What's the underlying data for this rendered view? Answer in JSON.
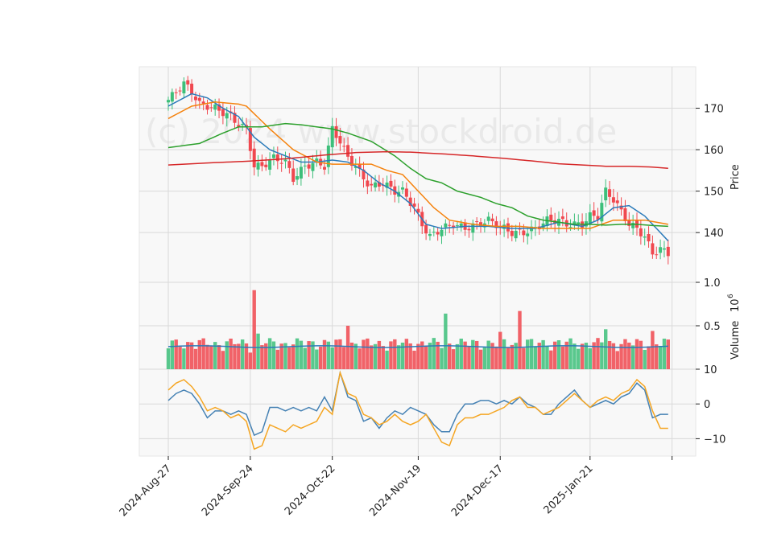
{
  "watermark": "(c) 2024 www.stockdroid.de",
  "colors": {
    "panel_bg": "#f8f8f8",
    "grid": "#d9d9d9",
    "up": "#3dbf7a",
    "down": "#f0484f",
    "ma_blue": "#2b7bba",
    "ma_orange": "#f5820d",
    "ma_green": "#2ca02c",
    "ma_red": "#d62728",
    "osc_blue": "#4682b4",
    "osc_orange": "#f5a623"
  },
  "chart_data": {
    "type": "candlestick",
    "x_labels": [
      "2024-Aug-27",
      "2024-Sep-24",
      "2024-Oct-22",
      "2024-Nov-19",
      "2024-Dec-17",
      "2025-Jan-21"
    ],
    "price_axis": {
      "label": "Price",
      "ticks": [
        140,
        150,
        160,
        170
      ],
      "ylim": [
        128,
        180
      ]
    },
    "volume_axis": {
      "label": "Volume",
      "exponent_label": "10",
      "exponent": "6",
      "ticks": [
        "0.5",
        "1.0"
      ],
      "ylim": [
        0,
        1.0
      ]
    },
    "osc_axis": {
      "ticks": [
        "−10",
        "0",
        "10"
      ],
      "tick_values": [
        -10,
        0,
        10
      ],
      "ylim": [
        -15,
        10
      ]
    },
    "price_close_anchors": [
      [
        0,
        172
      ],
      [
        4,
        176
      ],
      [
        6,
        174
      ],
      [
        8,
        171
      ],
      [
        12,
        170
      ],
      [
        16,
        168
      ],
      [
        18,
        166
      ],
      [
        20,
        165
      ],
      [
        22,
        156
      ],
      [
        24,
        156
      ],
      [
        27,
        158
      ],
      [
        30,
        157
      ],
      [
        32,
        153
      ],
      [
        35,
        156
      ],
      [
        38,
        157
      ],
      [
        40,
        156
      ],
      [
        42,
        165
      ],
      [
        44,
        162
      ],
      [
        46,
        158
      ],
      [
        48,
        156
      ],
      [
        50,
        153
      ],
      [
        52,
        151
      ],
      [
        55,
        152
      ],
      [
        58,
        150
      ],
      [
        60,
        150
      ],
      [
        63,
        146
      ],
      [
        65,
        142
      ],
      [
        67,
        139
      ],
      [
        70,
        141
      ],
      [
        73,
        142
      ],
      [
        76,
        141
      ],
      [
        79,
        142
      ],
      [
        82,
        143
      ],
      [
        84,
        142
      ],
      [
        86,
        141
      ],
      [
        88,
        140
      ],
      [
        91,
        140
      ],
      [
        94,
        141
      ],
      [
        97,
        143
      ],
      [
        100,
        143
      ],
      [
        102,
        142
      ],
      [
        104,
        142
      ],
      [
        106,
        142
      ],
      [
        108,
        144
      ],
      [
        110,
        144
      ],
      [
        112,
        150
      ],
      [
        114,
        148
      ],
      [
        116,
        145
      ],
      [
        118,
        142
      ],
      [
        120,
        141
      ],
      [
        122,
        139
      ],
      [
        124,
        135
      ],
      [
        126,
        136
      ],
      [
        128,
        135
      ]
    ],
    "ma_series": [
      {
        "color_key": "ma_blue",
        "points": [
          [
            0,
            170.5
          ],
          [
            6,
            173.5
          ],
          [
            10,
            172.5
          ],
          [
            14,
            170
          ],
          [
            18,
            168
          ],
          [
            22,
            163
          ],
          [
            26,
            160
          ],
          [
            30,
            158.5
          ],
          [
            34,
            157
          ],
          [
            38,
            157
          ],
          [
            42,
            157.5
          ],
          [
            46,
            157
          ],
          [
            50,
            155
          ],
          [
            54,
            152
          ],
          [
            58,
            150
          ],
          [
            62,
            147
          ],
          [
            66,
            142
          ],
          [
            70,
            141
          ],
          [
            76,
            141.5
          ],
          [
            82,
            141.5
          ],
          [
            88,
            141
          ],
          [
            94,
            141
          ],
          [
            100,
            142.5
          ],
          [
            106,
            141.5
          ],
          [
            110,
            143
          ],
          [
            114,
            146
          ],
          [
            118,
            146.5
          ],
          [
            122,
            144
          ],
          [
            126,
            140
          ],
          [
            128,
            138
          ]
        ]
      },
      {
        "color_key": "ma_orange",
        "points": [
          [
            0,
            167.5
          ],
          [
            6,
            170.5
          ],
          [
            12,
            171.5
          ],
          [
            18,
            171
          ],
          [
            20,
            170.5
          ],
          [
            26,
            165
          ],
          [
            32,
            160
          ],
          [
            38,
            157
          ],
          [
            42,
            156.5
          ],
          [
            46,
            156.5
          ],
          [
            52,
            156.5
          ],
          [
            56,
            155
          ],
          [
            60,
            154
          ],
          [
            64,
            150
          ],
          [
            68,
            146
          ],
          [
            72,
            143
          ],
          [
            78,
            142
          ],
          [
            84,
            141.5
          ],
          [
            90,
            141.5
          ],
          [
            96,
            141
          ],
          [
            102,
            141
          ],
          [
            108,
            141
          ],
          [
            114,
            143
          ],
          [
            118,
            143
          ],
          [
            122,
            143
          ],
          [
            128,
            142
          ]
        ]
      },
      {
        "color_key": "ma_green",
        "points": [
          [
            0,
            160.5
          ],
          [
            8,
            161.5
          ],
          [
            14,
            164
          ],
          [
            18,
            165.5
          ],
          [
            24,
            165.5
          ],
          [
            30,
            166.3
          ],
          [
            34,
            166
          ],
          [
            38,
            165.5
          ],
          [
            42,
            165
          ],
          [
            46,
            164
          ],
          [
            52,
            162
          ],
          [
            58,
            158.5
          ],
          [
            62,
            155.5
          ],
          [
            66,
            153
          ],
          [
            70,
            152
          ],
          [
            74,
            150
          ],
          [
            80,
            148.5
          ],
          [
            84,
            147
          ],
          [
            88,
            146
          ],
          [
            92,
            144
          ],
          [
            96,
            143
          ],
          [
            100,
            142.5
          ],
          [
            104,
            142
          ],
          [
            108,
            142
          ],
          [
            112,
            141.8
          ],
          [
            116,
            142
          ],
          [
            120,
            142
          ],
          [
            124,
            141.7
          ],
          [
            128,
            141.5
          ]
        ]
      },
      {
        "color_key": "ma_red",
        "points": [
          [
            0,
            156.3
          ],
          [
            10,
            156.8
          ],
          [
            20,
            157.2
          ],
          [
            30,
            157.8
          ],
          [
            40,
            158.7
          ],
          [
            48,
            159.3
          ],
          [
            56,
            159.5
          ],
          [
            62,
            159.4
          ],
          [
            70,
            159
          ],
          [
            78,
            158.5
          ],
          [
            86,
            157.9
          ],
          [
            94,
            157.2
          ],
          [
            100,
            156.6
          ],
          [
            106,
            156.3
          ],
          [
            112,
            156
          ],
          [
            118,
            156
          ],
          [
            124,
            155.8
          ],
          [
            128,
            155.5
          ]
        ]
      }
    ],
    "volume_ma": 0.26,
    "osc_series": [
      {
        "color_key": "osc_blue",
        "points": [
          [
            0,
            1
          ],
          [
            2,
            3
          ],
          [
            4,
            4
          ],
          [
            6,
            3
          ],
          [
            8,
            0
          ],
          [
            10,
            -4
          ],
          [
            12,
            -2
          ],
          [
            14,
            -2
          ],
          [
            16,
            -3
          ],
          [
            18,
            -2
          ],
          [
            20,
            -3
          ],
          [
            22,
            -9
          ],
          [
            24,
            -8
          ],
          [
            26,
            -1
          ],
          [
            28,
            -1
          ],
          [
            30,
            -2
          ],
          [
            32,
            -1
          ],
          [
            34,
            -2
          ],
          [
            36,
            -1
          ],
          [
            38,
            -2
          ],
          [
            40,
            2
          ],
          [
            42,
            -2
          ],
          [
            44,
            9
          ],
          [
            46,
            2
          ],
          [
            48,
            1
          ],
          [
            50,
            -5
          ],
          [
            52,
            -4
          ],
          [
            54,
            -7
          ],
          [
            56,
            -4
          ],
          [
            58,
            -2
          ],
          [
            60,
            -3
          ],
          [
            62,
            -1
          ],
          [
            64,
            -2
          ],
          [
            66,
            -3
          ],
          [
            68,
            -6
          ],
          [
            70,
            -8
          ],
          [
            72,
            -8
          ],
          [
            74,
            -3
          ],
          [
            76,
            0
          ],
          [
            78,
            0
          ],
          [
            80,
            1
          ],
          [
            82,
            1
          ],
          [
            84,
            0
          ],
          [
            86,
            1
          ],
          [
            88,
            0
          ],
          [
            90,
            2
          ],
          [
            92,
            0
          ],
          [
            94,
            -1
          ],
          [
            96,
            -3
          ],
          [
            98,
            -3
          ],
          [
            100,
            0
          ],
          [
            102,
            2
          ],
          [
            104,
            4
          ],
          [
            106,
            1
          ],
          [
            108,
            -1
          ],
          [
            110,
            0
          ],
          [
            112,
            1
          ],
          [
            114,
            0
          ],
          [
            116,
            2
          ],
          [
            118,
            3
          ],
          [
            120,
            6
          ],
          [
            122,
            4
          ],
          [
            124,
            -4
          ],
          [
            126,
            -3
          ],
          [
            128,
            -3
          ]
        ]
      },
      {
        "color_key": "osc_orange",
        "points": [
          [
            0,
            4
          ],
          [
            2,
            6
          ],
          [
            4,
            7
          ],
          [
            6,
            5
          ],
          [
            8,
            2
          ],
          [
            10,
            -2
          ],
          [
            12,
            -1
          ],
          [
            14,
            -2
          ],
          [
            16,
            -4
          ],
          [
            18,
            -3
          ],
          [
            20,
            -5
          ],
          [
            22,
            -13
          ],
          [
            24,
            -12
          ],
          [
            26,
            -6
          ],
          [
            28,
            -7
          ],
          [
            30,
            -8
          ],
          [
            32,
            -6
          ],
          [
            34,
            -7
          ],
          [
            36,
            -6
          ],
          [
            38,
            -5
          ],
          [
            40,
            -1
          ],
          [
            42,
            -3
          ],
          [
            44,
            9
          ],
          [
            46,
            3
          ],
          [
            48,
            2
          ],
          [
            50,
            -3
          ],
          [
            52,
            -4
          ],
          [
            54,
            -6
          ],
          [
            56,
            -5
          ],
          [
            58,
            -3
          ],
          [
            60,
            -5
          ],
          [
            62,
            -6
          ],
          [
            64,
            -5
          ],
          [
            66,
            -3
          ],
          [
            68,
            -7
          ],
          [
            70,
            -11
          ],
          [
            72,
            -12
          ],
          [
            74,
            -6
          ],
          [
            76,
            -4
          ],
          [
            78,
            -4
          ],
          [
            80,
            -3
          ],
          [
            82,
            -3
          ],
          [
            84,
            -2
          ],
          [
            86,
            -1
          ],
          [
            88,
            1
          ],
          [
            90,
            2
          ],
          [
            92,
            -1
          ],
          [
            94,
            -1
          ],
          [
            96,
            -3
          ],
          [
            98,
            -2
          ],
          [
            100,
            -1
          ],
          [
            102,
            1
          ],
          [
            104,
            3
          ],
          [
            106,
            1
          ],
          [
            108,
            -1
          ],
          [
            110,
            1
          ],
          [
            112,
            2
          ],
          [
            114,
            1
          ],
          [
            116,
            3
          ],
          [
            118,
            4
          ],
          [
            120,
            7
          ],
          [
            122,
            5
          ],
          [
            124,
            -2
          ],
          [
            126,
            -7
          ],
          [
            128,
            -7
          ]
        ]
      }
    ]
  }
}
